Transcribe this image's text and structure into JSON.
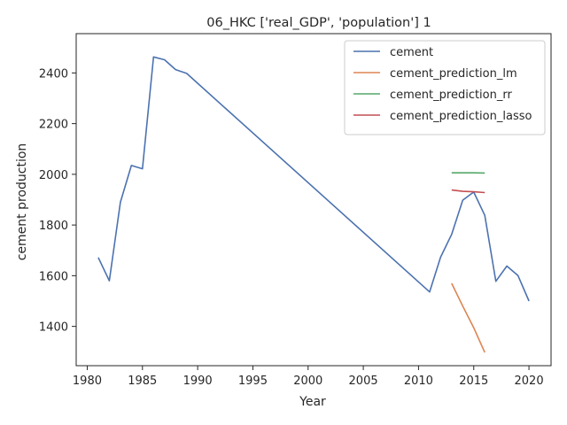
{
  "chart_data": {
    "type": "line",
    "title": "06_HKC ['real_GDP', 'population'] 1",
    "xlabel": "Year",
    "ylabel": "cement production",
    "xlim": [
      1979.0,
      2022.0
    ],
    "ylim": [
      1245,
      2555
    ],
    "xticks": [
      1980,
      1985,
      1990,
      1995,
      2000,
      2005,
      2010,
      2015,
      2020
    ],
    "yticks": [
      1400,
      1600,
      1800,
      2000,
      2200,
      2400
    ],
    "grid": false,
    "legend_position": "top-right",
    "series": [
      {
        "name": "cement",
        "color": "#4c72b0",
        "x": [
          1981,
          1982,
          1983,
          1984,
          1985,
          1986,
          1987,
          1988,
          1989,
          2011,
          2012,
          2013,
          2014,
          2015,
          2016,
          2017,
          2018,
          2019,
          2020
        ],
        "y": [
          1672,
          1580,
          1890,
          2035,
          2022,
          2463,
          2452,
          2413,
          2398,
          1536,
          1673,
          1763,
          1898,
          1930,
          1838,
          1578,
          1638,
          1601,
          1500
        ]
      },
      {
        "name": "cement_prediction_lm",
        "color": "#dd8452",
        "x": [
          2013,
          2014,
          2015,
          2016
        ],
        "y": [
          1570,
          1480,
          1395,
          1297
        ]
      },
      {
        "name": "cement_prediction_rr",
        "color": "#55a868",
        "x": [
          2013,
          2014,
          2015,
          2016
        ],
        "y": [
          2006,
          2006,
          2006,
          2005
        ]
      },
      {
        "name": "cement_prediction_lasso",
        "color": "#c44e52",
        "x": [
          2013,
          2014,
          2015,
          2016
        ],
        "y": [
          1938,
          1933,
          1931,
          1928
        ]
      }
    ]
  }
}
